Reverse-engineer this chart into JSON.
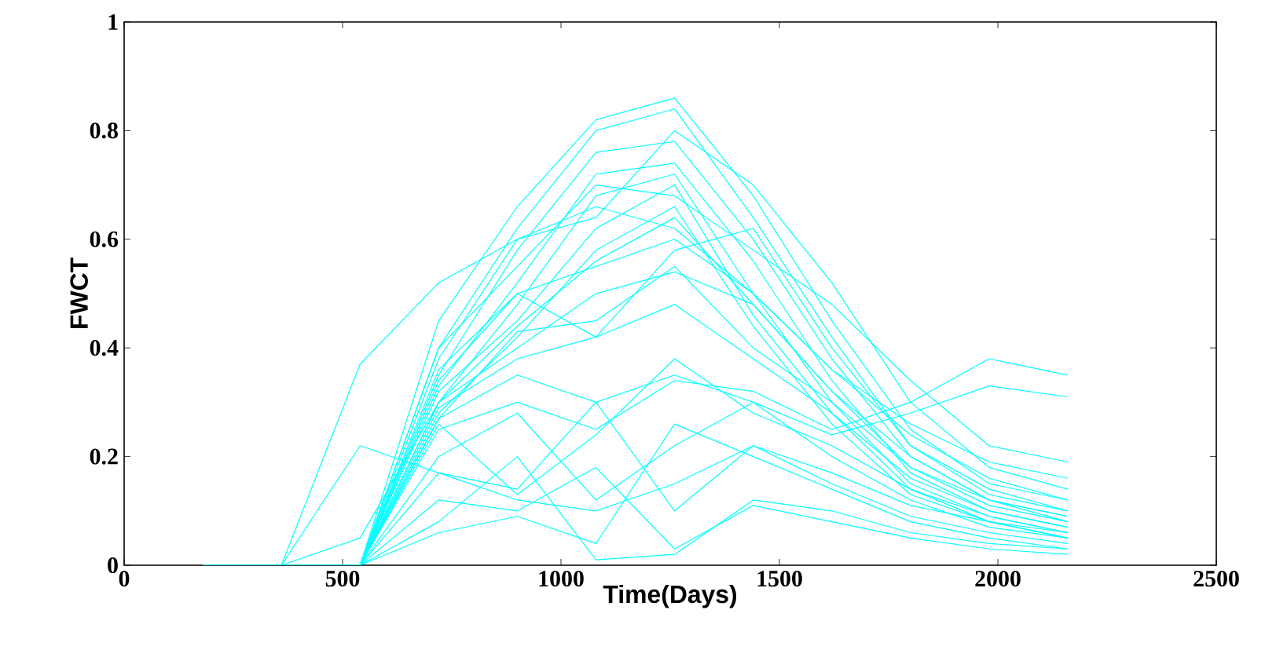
{
  "chart_data": {
    "type": "line",
    "xlabel": "Time(Days)",
    "ylabel": "FWCT",
    "xlim": [
      0,
      2500
    ],
    "ylim": [
      0,
      1
    ],
    "xticks": [
      0,
      500,
      1000,
      1500,
      2000,
      2500
    ],
    "yticks": [
      0,
      0.2,
      0.4,
      0.6,
      0.8,
      1
    ],
    "x": [
      180,
      360,
      540,
      720,
      900,
      1080,
      1260,
      1440,
      1620,
      1800,
      1980,
      2160
    ],
    "series": [
      {
        "color": "#00ffff",
        "values": [
          0,
          0,
          0.37,
          0.52,
          0.6,
          0.66,
          0.62,
          0.5,
          0.36,
          0.26,
          0.19,
          0.16
        ]
      },
      {
        "color": "#00ffff",
        "values": [
          0,
          0,
          0.22,
          0.17,
          0.12,
          0.1,
          0.15,
          0.22,
          0.17,
          0.11,
          0.08,
          0.06
        ]
      },
      {
        "color": "#00ffff",
        "values": [
          0,
          0,
          0.05,
          0.3,
          0.44,
          0.56,
          0.64,
          0.48,
          0.32,
          0.18,
          0.12,
          0.09
        ]
      },
      {
        "color": "#00ffff",
        "values": [
          0,
          0,
          0,
          0.45,
          0.66,
          0.82,
          0.86,
          0.68,
          0.45,
          0.25,
          0.15,
          0.12
        ]
      },
      {
        "color": "#00ffff",
        "values": [
          0,
          0,
          0,
          0.4,
          0.62,
          0.8,
          0.84,
          0.64,
          0.42,
          0.22,
          0.13,
          0.1
        ]
      },
      {
        "color": "#00ffff",
        "values": [
          0,
          0,
          0,
          0.35,
          0.58,
          0.76,
          0.78,
          0.6,
          0.38,
          0.2,
          0.12,
          0.08
        ]
      },
      {
        "color": "#00ffff",
        "values": [
          0,
          0,
          0,
          0.33,
          0.52,
          0.72,
          0.74,
          0.56,
          0.34,
          0.17,
          0.1,
          0.07
        ]
      },
      {
        "color": "#00ffff",
        "values": [
          0,
          0,
          0,
          0.3,
          0.48,
          0.68,
          0.72,
          0.5,
          0.3,
          0.15,
          0.09,
          0.06
        ]
      },
      {
        "color": "#00ffff",
        "values": [
          0,
          0,
          0,
          0.32,
          0.45,
          0.62,
          0.7,
          0.46,
          0.28,
          0.14,
          0.08,
          0.05
        ]
      },
      {
        "color": "#00ffff",
        "values": [
          0,
          0,
          0,
          0.28,
          0.42,
          0.58,
          0.66,
          0.44,
          0.26,
          0.13,
          0.08,
          0.05
        ]
      },
      {
        "color": "#00ffff",
        "values": [
          0,
          0,
          0,
          0.36,
          0.5,
          0.55,
          0.6,
          0.5,
          0.36,
          0.24,
          0.16,
          0.12
        ]
      },
      {
        "color": "#00ffff",
        "values": [
          0,
          0,
          0,
          0.3,
          0.4,
          0.5,
          0.54,
          0.48,
          0.32,
          0.2,
          0.12,
          0.09
        ]
      },
      {
        "color": "#00ffff",
        "values": [
          0,
          0,
          0,
          0.27,
          0.43,
          0.45,
          0.55,
          0.4,
          0.3,
          0.18,
          0.11,
          0.08
        ]
      },
      {
        "color": "#00ffff",
        "values": [
          0,
          0,
          0,
          0.29,
          0.38,
          0.42,
          0.48,
          0.38,
          0.28,
          0.16,
          0.1,
          0.07
        ]
      },
      {
        "color": "#00ffff",
        "values": [
          0,
          0,
          0,
          0.27,
          0.35,
          0.3,
          0.35,
          0.3,
          0.24,
          0.28,
          0.33,
          0.31
        ]
      },
      {
        "color": "#00ffff",
        "values": [
          0,
          0,
          0,
          0.25,
          0.3,
          0.25,
          0.34,
          0.32,
          0.25,
          0.3,
          0.38,
          0.35
        ]
      },
      {
        "color": "#00ffff",
        "values": [
          0,
          0,
          0,
          0.26,
          0.13,
          0.24,
          0.38,
          0.28,
          0.22,
          0.14,
          0.09,
          0.06
        ]
      },
      {
        "color": "#00ffff",
        "values": [
          0,
          0,
          0,
          0.2,
          0.28,
          0.12,
          0.22,
          0.3,
          0.2,
          0.12,
          0.07,
          0.05
        ]
      },
      {
        "color": "#00ffff",
        "values": [
          0,
          0,
          0,
          0.17,
          0.14,
          0.3,
          0.1,
          0.22,
          0.15,
          0.09,
          0.06,
          0.04
        ]
      },
      {
        "color": "#00ffff",
        "values": [
          0,
          0,
          0,
          0.12,
          0.1,
          0.18,
          0.03,
          0.11,
          0.08,
          0.05,
          0.03,
          0.02
        ]
      },
      {
        "color": "#00ffff",
        "values": [
          0,
          0,
          0,
          0.08,
          0.2,
          0.01,
          0.02,
          0.12,
          0.1,
          0.06,
          0.04,
          0.03
        ]
      },
      {
        "color": "#00ffff",
        "values": [
          0,
          0,
          0,
          0.06,
          0.09,
          0.04,
          0.26,
          0.2,
          0.14,
          0.08,
          0.05,
          0.03
        ]
      },
      {
        "color": "#00ffff",
        "values": [
          0,
          0,
          0,
          0.4,
          0.55,
          0.7,
          0.68,
          0.58,
          0.48,
          0.34,
          0.22,
          0.19
        ]
      },
      {
        "color": "#00ffff",
        "values": [
          0,
          0,
          0,
          0.38,
          0.6,
          0.64,
          0.8,
          0.7,
          0.52,
          0.3,
          0.18,
          0.14
        ]
      },
      {
        "color": "#00ffff",
        "values": [
          0,
          0,
          0,
          0.34,
          0.5,
          0.42,
          0.58,
          0.62,
          0.4,
          0.22,
          0.14,
          0.1
        ]
      }
    ]
  }
}
